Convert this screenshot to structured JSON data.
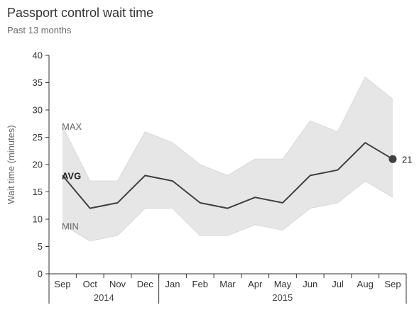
{
  "chart_data": {
    "type": "area",
    "title": "Passport control wait time",
    "subtitle": "Past 13 months",
    "ylabel": "Wait time (minutes)",
    "xlabel": "",
    "ylim": [
      0,
      40
    ],
    "yticks": [
      0,
      5,
      10,
      15,
      20,
      25,
      30,
      35,
      40
    ],
    "categories": [
      "Sep",
      "Oct",
      "Nov",
      "Dec",
      "Jan",
      "Feb",
      "Mar",
      "Apr",
      "May",
      "Jun",
      "Jul",
      "Aug",
      "Sep"
    ],
    "year_groups": [
      {
        "label": "2014",
        "start": 0,
        "end": 3
      },
      {
        "label": "2015",
        "start": 4,
        "end": 12
      }
    ],
    "series": [
      {
        "name": "MAX",
        "values": [
          27,
          17,
          17,
          26,
          24,
          20,
          18,
          21,
          21,
          28,
          26,
          36,
          32
        ]
      },
      {
        "name": "AVG",
        "values": [
          18,
          12,
          13,
          18,
          17,
          13,
          12,
          14,
          13,
          18,
          19,
          24,
          21
        ]
      },
      {
        "name": "MIN",
        "values": [
          9,
          6,
          7,
          12,
          12,
          7,
          7,
          9,
          8,
          12,
          13,
          17,
          14
        ]
      }
    ],
    "end_label": "21",
    "grid": false,
    "colors": {
      "band": "#e6e6e6",
      "band_edge": "#d9d9d9",
      "avg": "#404040",
      "axis": "#333333"
    }
  }
}
